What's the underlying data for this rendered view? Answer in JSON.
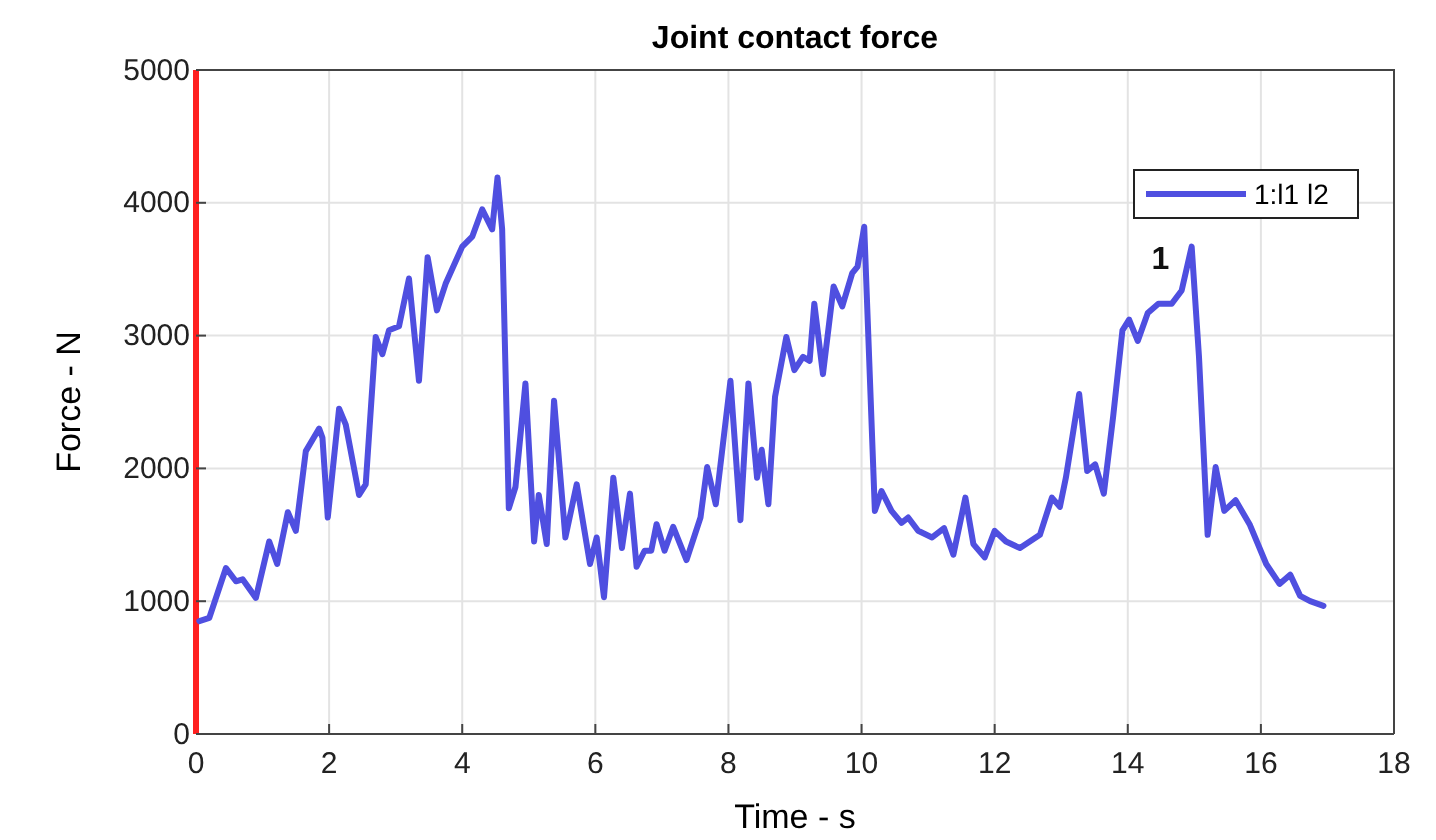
{
  "chart_data": {
    "type": "line",
    "title": "Joint contact force",
    "xlabel": "Time - s",
    "ylabel": "Force - N",
    "xlim": [
      0,
      18
    ],
    "xticks": [
      0,
      2,
      4,
      6,
      8,
      10,
      12,
      14,
      16,
      18
    ],
    "ylim": [
      0,
      5000
    ],
    "yticks": [
      0,
      1000,
      2000,
      3000,
      4000,
      5000
    ],
    "grid": true,
    "legend": "top right",
    "marker": "none",
    "line_style": "solid",
    "annotations": [
      "1"
    ],
    "series": [
      {
        "name": "1:l1 l2",
        "color": "#4f4fe0",
        "x": [
          0.05,
          0.2,
          0.45,
          0.6,
          0.7,
          0.9,
          1.1,
          1.22,
          1.38,
          1.5,
          1.65,
          1.85,
          1.9,
          1.98,
          2.15,
          2.25,
          2.45,
          2.55,
          2.7,
          2.8,
          2.9,
          3.05,
          3.2,
          3.35,
          3.48,
          3.62,
          3.75,
          4.0,
          4.15,
          4.3,
          4.45,
          4.53,
          4.6,
          4.7,
          4.8,
          4.95,
          5.08,
          5.15,
          5.27,
          5.38,
          5.55,
          5.72,
          5.92,
          6.02,
          6.13,
          6.27,
          6.4,
          6.52,
          6.62,
          6.74,
          6.84,
          6.92,
          7.04,
          7.17,
          7.37,
          7.58,
          7.68,
          7.81,
          8.03,
          8.18,
          8.3,
          8.43,
          8.5,
          8.6,
          8.7,
          8.87,
          8.99,
          9.12,
          9.22,
          9.29,
          9.42,
          9.58,
          9.71,
          9.86,
          9.94,
          10.04,
          10.2,
          10.3,
          10.45,
          10.6,
          10.7,
          10.85,
          11.06,
          11.24,
          11.38,
          11.56,
          11.68,
          11.85,
          12.0,
          12.17,
          12.38,
          12.68,
          12.86,
          12.98,
          13.07,
          13.27,
          13.39,
          13.51,
          13.64,
          13.78,
          13.92,
          14.02,
          14.15,
          14.3,
          14.46,
          14.66,
          14.81,
          14.96,
          15.07,
          15.2,
          15.32,
          15.45,
          15.62,
          15.83,
          16.08,
          16.28,
          16.44,
          16.59,
          16.74,
          16.94
        ],
        "values": [
          850,
          875,
          1250,
          1150,
          1165,
          1025,
          1450,
          1280,
          1670,
          1530,
          2130,
          2300,
          2230,
          1630,
          2450,
          2330,
          1800,
          1880,
          2990,
          2860,
          3040,
          3070,
          3430,
          2660,
          3590,
          3190,
          3390,
          3670,
          3745,
          3950,
          3800,
          4190,
          3800,
          1700,
          1860,
          2640,
          1450,
          1800,
          1430,
          2510,
          1480,
          1880,
          1280,
          1480,
          1030,
          1930,
          1400,
          1810,
          1260,
          1380,
          1380,
          1580,
          1380,
          1560,
          1310,
          1630,
          2010,
          1730,
          2660,
          1610,
          2640,
          1930,
          2140,
          1730,
          2540,
          2990,
          2740,
          2840,
          2810,
          3240,
          2710,
          3370,
          3220,
          3470,
          3520,
          3820,
          1680,
          1830,
          1680,
          1590,
          1630,
          1530,
          1480,
          1550,
          1350,
          1780,
          1430,
          1330,
          1530,
          1450,
          1400,
          1500,
          1780,
          1710,
          1930,
          2560,
          1980,
          2030,
          1810,
          2390,
          3040,
          3120,
          2960,
          3170,
          3240,
          3240,
          3340,
          3670,
          2840,
          1500,
          2010,
          1680,
          1760,
          1580,
          1280,
          1130,
          1200,
          1040,
          1000,
          965
        ]
      }
    ]
  }
}
